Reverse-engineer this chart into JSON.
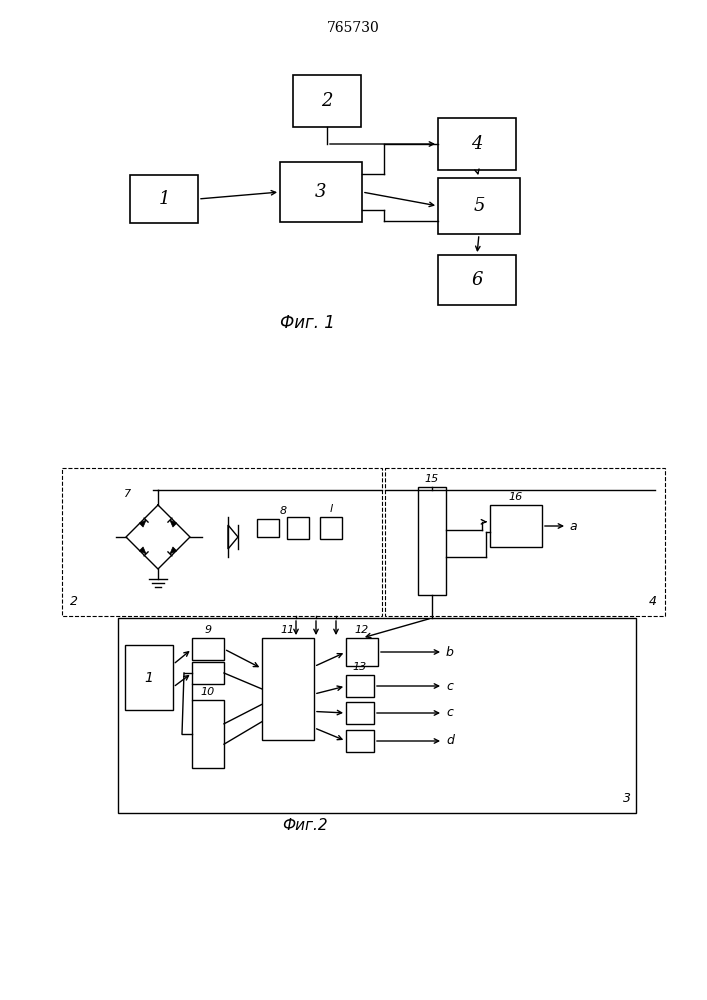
{
  "title": "765730",
  "fig1_caption": "Фиг. 1",
  "fig2_caption": "Фиг.2",
  "bg_color": "#ffffff",
  "line_color": "#000000",
  "fig_size": [
    7.07,
    10.0
  ],
  "dpi": 100
}
